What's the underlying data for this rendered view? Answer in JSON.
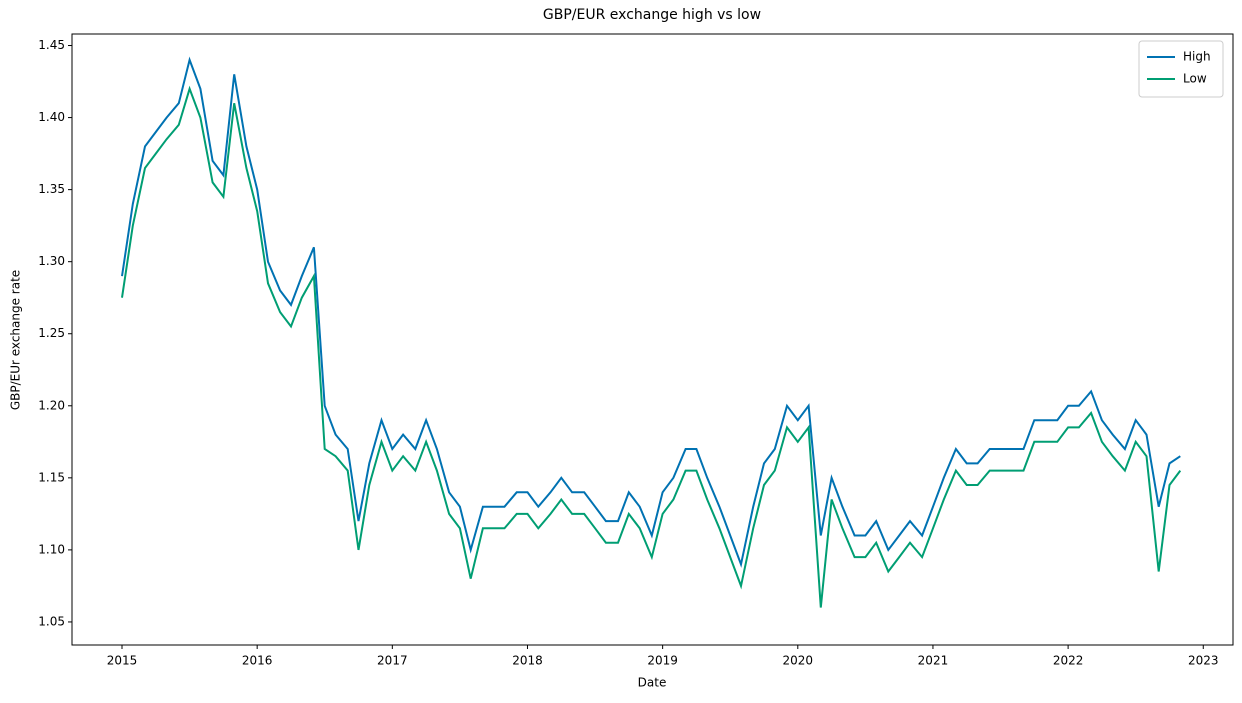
{
  "chart_data": {
    "type": "line",
    "title": "GBP/EUR exchange high vs low",
    "xlabel": "Date",
    "ylabel": "GBP/EUr exchange rate",
    "x": [
      2015.0,
      2015.08,
      2015.17,
      2015.25,
      2015.33,
      2015.42,
      2015.5,
      2015.58,
      2015.67,
      2015.75,
      2015.83,
      2015.92,
      2016.0,
      2016.08,
      2016.17,
      2016.25,
      2016.33,
      2016.42,
      2016.5,
      2016.58,
      2016.67,
      2016.75,
      2016.83,
      2016.92,
      2017.0,
      2017.08,
      2017.17,
      2017.25,
      2017.33,
      2017.42,
      2017.5,
      2017.58,
      2017.67,
      2017.75,
      2017.83,
      2017.92,
      2018.0,
      2018.08,
      2018.17,
      2018.25,
      2018.33,
      2018.42,
      2018.5,
      2018.58,
      2018.67,
      2018.75,
      2018.83,
      2018.92,
      2019.0,
      2019.08,
      2019.17,
      2019.25,
      2019.33,
      2019.42,
      2019.5,
      2019.58,
      2019.67,
      2019.75,
      2019.83,
      2019.92,
      2020.0,
      2020.08,
      2020.17,
      2020.25,
      2020.33,
      2020.42,
      2020.5,
      2020.58,
      2020.67,
      2020.75,
      2020.83,
      2020.92,
      2021.0,
      2021.08,
      2021.17,
      2021.25,
      2021.33,
      2021.42,
      2021.5,
      2021.58,
      2021.67,
      2021.75,
      2021.83,
      2021.92,
      2022.0,
      2022.08,
      2022.17,
      2022.25,
      2022.33,
      2022.42,
      2022.5,
      2022.58,
      2022.67,
      2022.75,
      2022.83
    ],
    "series": [
      {
        "name": "High",
        "color": "#0072b2",
        "values": [
          1.29,
          1.34,
          1.38,
          1.39,
          1.4,
          1.41,
          1.44,
          1.42,
          1.37,
          1.36,
          1.43,
          1.38,
          1.35,
          1.3,
          1.28,
          1.27,
          1.29,
          1.31,
          1.2,
          1.18,
          1.17,
          1.12,
          1.16,
          1.19,
          1.17,
          1.18,
          1.17,
          1.19,
          1.17,
          1.14,
          1.13,
          1.1,
          1.13,
          1.13,
          1.13,
          1.14,
          1.14,
          1.13,
          1.14,
          1.15,
          1.14,
          1.14,
          1.13,
          1.12,
          1.12,
          1.14,
          1.13,
          1.11,
          1.14,
          1.15,
          1.17,
          1.17,
          1.15,
          1.13,
          1.11,
          1.09,
          1.13,
          1.16,
          1.17,
          1.2,
          1.19,
          1.2,
          1.11,
          1.15,
          1.13,
          1.11,
          1.11,
          1.12,
          1.1,
          1.11,
          1.12,
          1.11,
          1.13,
          1.15,
          1.17,
          1.16,
          1.16,
          1.17,
          1.17,
          1.17,
          1.17,
          1.19,
          1.19,
          1.19,
          1.2,
          1.2,
          1.21,
          1.19,
          1.18,
          1.17,
          1.19,
          1.18,
          1.13,
          1.16,
          1.165
        ]
      },
      {
        "name": "Low",
        "color": "#009e73",
        "values": [
          1.275,
          1.325,
          1.365,
          1.375,
          1.385,
          1.395,
          1.42,
          1.4,
          1.355,
          1.345,
          1.41,
          1.365,
          1.335,
          1.285,
          1.265,
          1.255,
          1.275,
          1.29,
          1.17,
          1.165,
          1.155,
          1.1,
          1.145,
          1.175,
          1.155,
          1.165,
          1.155,
          1.175,
          1.155,
          1.125,
          1.115,
          1.08,
          1.115,
          1.115,
          1.115,
          1.125,
          1.125,
          1.115,
          1.125,
          1.135,
          1.125,
          1.125,
          1.115,
          1.105,
          1.105,
          1.125,
          1.115,
          1.095,
          1.125,
          1.135,
          1.155,
          1.155,
          1.135,
          1.115,
          1.095,
          1.075,
          1.115,
          1.145,
          1.155,
          1.185,
          1.175,
          1.185,
          1.06,
          1.135,
          1.115,
          1.095,
          1.095,
          1.105,
          1.085,
          1.095,
          1.105,
          1.095,
          1.115,
          1.135,
          1.155,
          1.145,
          1.145,
          1.155,
          1.155,
          1.155,
          1.155,
          1.175,
          1.175,
          1.175,
          1.185,
          1.185,
          1.195,
          1.175,
          1.165,
          1.155,
          1.175,
          1.165,
          1.085,
          1.145,
          1.155
        ]
      }
    ],
    "xlim": [
      2014.63,
      2023.22
    ],
    "xticks": [
      2015,
      2016,
      2017,
      2018,
      2019,
      2020,
      2021,
      2022,
      2023
    ],
    "ylim": [
      1.034,
      1.458
    ],
    "yticks": [
      1.05,
      {
        "value": 1.1,
        "label": "1.10"
      },
      1.15,
      {
        "value": 1.2,
        "label": "1.20"
      },
      1.25,
      {
        "value": 1.3,
        "label": "1.30"
      },
      1.35,
      {
        "value": 1.4,
        "label": "1.40"
      },
      1.45
    ],
    "grid": false,
    "legend": "upper right"
  }
}
